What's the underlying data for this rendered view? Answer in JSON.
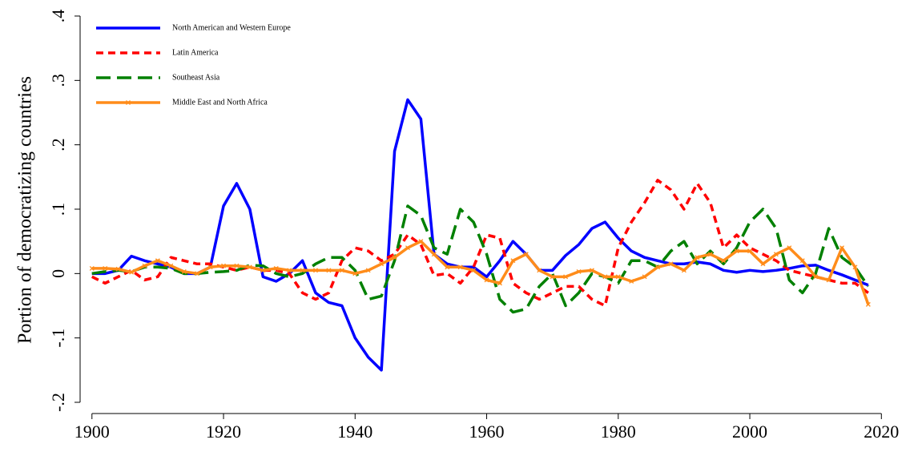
{
  "chart_data": {
    "type": "line",
    "y_label": "Portion of democratizing countries",
    "x": [
      1900,
      1902,
      1904,
      1906,
      1908,
      1910,
      1912,
      1914,
      1916,
      1918,
      1920,
      1922,
      1924,
      1926,
      1928,
      1930,
      1932,
      1934,
      1936,
      1938,
      1940,
      1942,
      1944,
      1946,
      1948,
      1950,
      1952,
      1954,
      1956,
      1958,
      1960,
      1962,
      1964,
      1966,
      1968,
      1970,
      1972,
      1974,
      1976,
      1978,
      1980,
      1982,
      1984,
      1986,
      1988,
      1990,
      1992,
      1994,
      1996,
      1998,
      2000,
      2002,
      2004,
      2006,
      2008,
      2010,
      2012,
      2014,
      2016,
      2018
    ],
    "series": [
      {
        "name": "North American and Western Europe",
        "color": "#0000ff",
        "style": "solid",
        "values": [
          0,
          0,
          0.005,
          0.027,
          0.02,
          0.015,
          0.01,
          0,
          0,
          0.01,
          0.105,
          0.14,
          0.1,
          -0.005,
          -0.012,
          0,
          0.02,
          -0.03,
          -0.045,
          -0.05,
          -0.1,
          -0.13,
          -0.15,
          0.19,
          0.27,
          0.24,
          0.03,
          0.015,
          0.01,
          0.01,
          -0.005,
          0.02,
          0.05,
          0.03,
          0.005,
          0.005,
          0.028,
          0.045,
          0.07,
          0.08,
          0.055,
          0.035,
          0.025,
          0.02,
          0.015,
          0.015,
          0.018,
          0.015,
          0.005,
          0.002,
          0.005,
          0.003,
          0.005,
          0.008,
          0.012,
          0.013,
          0.005,
          -0.002,
          -0.01,
          -0.018
        ]
      },
      {
        "name": "Latin America",
        "color": "#ff0000",
        "style": "short-dash",
        "values": [
          -0.005,
          -0.015,
          -0.005,
          0.005,
          -0.01,
          -0.005,
          0.025,
          0.02,
          0.015,
          0.015,
          0.01,
          0.005,
          0.01,
          0.005,
          0.005,
          0,
          -0.03,
          -0.04,
          -0.03,
          0.02,
          0.04,
          0.035,
          0.02,
          0.03,
          0.06,
          0.045,
          -0.003,
          0,
          -0.015,
          0.01,
          0.06,
          0.055,
          -0.015,
          -0.03,
          -0.04,
          -0.03,
          -0.02,
          -0.02,
          -0.04,
          -0.05,
          0.04,
          0.08,
          0.11,
          0.145,
          0.13,
          0.1,
          0.14,
          0.11,
          0.04,
          0.06,
          0.04,
          0.03,
          0.02,
          0.005,
          0,
          -0.005,
          -0.01,
          -0.015,
          -0.015,
          -0.03
        ]
      },
      {
        "name": "Southeast Asia",
        "color": "#008000",
        "style": "long-dash",
        "values": [
          0,
          0.003,
          0.005,
          0.003,
          0.01,
          0.01,
          0.008,
          0,
          0,
          0.002,
          0.003,
          0.005,
          0.013,
          0.012,
          0,
          -0.005,
          0,
          0.015,
          0.025,
          0.025,
          0.005,
          -0.04,
          -0.035,
          0.02,
          0.105,
          0.09,
          0.04,
          0.03,
          0.1,
          0.08,
          0.03,
          -0.04,
          -0.06,
          -0.055,
          -0.02,
          0,
          -0.05,
          -0.03,
          0,
          -0.005,
          -0.015,
          0.02,
          0.02,
          0.01,
          0.035,
          0.05,
          0.015,
          0.035,
          0.015,
          0.04,
          0.08,
          0.1,
          0.07,
          -0.01,
          -0.03,
          0,
          0.07,
          0.025,
          0.01,
          -0.02
        ]
      },
      {
        "name": "Middle East and North Africa",
        "color": "#ff8c1a",
        "style": "solid",
        "marker": "x",
        "values": [
          0.008,
          0.008,
          0.007,
          0.002,
          0.012,
          0.02,
          0.012,
          0.003,
          0,
          0.01,
          0.012,
          0.012,
          0.01,
          0.005,
          0.008,
          0.005,
          0.005,
          0.005,
          0.005,
          0.005,
          0,
          0.005,
          0.015,
          0.025,
          0.04,
          0.05,
          0.03,
          0.01,
          0.01,
          0.005,
          -0.01,
          -0.015,
          0.02,
          0.03,
          0.005,
          -0.005,
          -0.005,
          0.003,
          0.005,
          -0.005,
          -0.005,
          -0.012,
          -0.005,
          0.01,
          0.015,
          0.005,
          0.025,
          0.03,
          0.02,
          0.035,
          0.035,
          0.015,
          0.03,
          0.04,
          0.02,
          -0.005,
          -0.01,
          0.04,
          0.01,
          -0.048
        ]
      }
    ],
    "xlim": [
      1898.2,
      2022.4
    ],
    "ylim": [
      -0.2,
      0.4
    ],
    "xticks": [
      1900,
      1920,
      1940,
      1960,
      1980,
      2000,
      2020
    ],
    "yticks": [
      {
        "value": -0.2,
        "label": "-.2"
      },
      {
        "value": -0.1,
        "label": "-.1"
      },
      0,
      {
        "value": 0.1,
        "label": ".1"
      },
      {
        "value": 0.2,
        "label": ".2"
      },
      {
        "value": 0.3,
        "label": ".3"
      },
      {
        "value": 0.4,
        "label": ".4"
      }
    ],
    "legend": "upper-left"
  }
}
